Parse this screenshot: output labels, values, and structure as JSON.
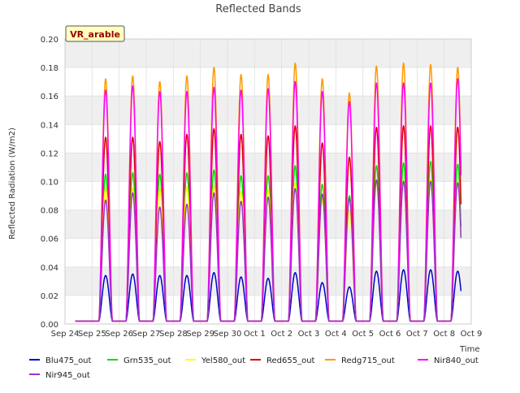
{
  "chart_data": {
    "type": "line",
    "title": "Reflected Bands",
    "xlabel": "Time",
    "ylabel": "Reflected Radiation (W/m2)",
    "site_label": "VR_arable",
    "ylim": [
      0,
      0.2
    ],
    "yticks": [
      "0.00",
      "0.02",
      "0.04",
      "0.06",
      "0.08",
      "0.10",
      "0.12",
      "0.14",
      "0.16",
      "0.18",
      "0.20"
    ],
    "xlim": [
      "2023-09-24",
      "2023-10-09"
    ],
    "xticks": [
      "Sep 24",
      "Sep 25",
      "Sep 26",
      "Sep 27",
      "Sep 28",
      "Sep 29",
      "Sep 30",
      "Oct 1",
      "Oct 2",
      "Oct 3",
      "Oct 4",
      "Oct 5",
      "Oct 6",
      "Oct 7",
      "Oct 8",
      "Oct 9"
    ],
    "grid": true,
    "legend_position": "bottom",
    "x": [
      "2023-09-25",
      "2023-09-26",
      "2023-09-27",
      "2023-09-28",
      "2023-09-29",
      "2023-09-30",
      "2023-10-01",
      "2023-10-02",
      "2023-10-03",
      "2023-10-04",
      "2023-10-05",
      "2023-10-06",
      "2023-10-07",
      "2023-10-08"
    ],
    "series": [
      {
        "name": "Blu475_out",
        "color": "#0000cc",
        "values": [
          0.034,
          0.035,
          0.034,
          0.034,
          0.036,
          0.033,
          0.032,
          0.036,
          0.029,
          0.026,
          0.037,
          0.038,
          0.038,
          0.037
        ]
      },
      {
        "name": "Grn535_out",
        "color": "#00dd00",
        "values": [
          0.105,
          0.106,
          0.105,
          0.106,
          0.108,
          0.104,
          0.104,
          0.111,
          0.098,
          0.09,
          0.111,
          0.113,
          0.114,
          0.112
        ]
      },
      {
        "name": "Yel580_out",
        "color": "#ffff00",
        "values": [
          0.095,
          0.095,
          0.095,
          0.096,
          0.097,
          0.093,
          0.094,
          0.099,
          0.088,
          0.08,
          0.1,
          0.101,
          0.101,
          0.1
        ]
      },
      {
        "name": "Red655_out",
        "color": "#dd0000",
        "values": [
          0.131,
          0.131,
          0.128,
          0.133,
          0.137,
          0.133,
          0.132,
          0.139,
          0.127,
          0.117,
          0.138,
          0.139,
          0.139,
          0.138
        ]
      },
      {
        "name": "Redg715_out",
        "color": "#ff9900",
        "values": [
          0.172,
          0.174,
          0.17,
          0.174,
          0.18,
          0.175,
          0.175,
          0.183,
          0.172,
          0.162,
          0.181,
          0.183,
          0.182,
          0.18
        ]
      },
      {
        "name": "Nir840_out",
        "color": "#ff00ff",
        "values": [
          0.164,
          0.167,
          0.163,
          0.163,
          0.166,
          0.164,
          0.165,
          0.17,
          0.163,
          0.156,
          0.169,
          0.169,
          0.169,
          0.172
        ]
      },
      {
        "name": "Nir945_out",
        "color": "#9933cc",
        "values": [
          0.087,
          0.092,
          0.082,
          0.084,
          0.092,
          0.086,
          0.089,
          0.095,
          0.091,
          0.088,
          0.101,
          0.1,
          0.1,
          0.099
        ]
      }
    ]
  }
}
